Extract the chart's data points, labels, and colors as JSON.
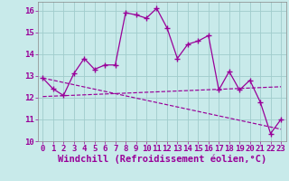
{
  "xlabel": "Windchill (Refroidissement éolien,°C)",
  "x": [
    0,
    1,
    2,
    3,
    4,
    5,
    6,
    7,
    8,
    9,
    10,
    11,
    12,
    13,
    14,
    15,
    16,
    17,
    18,
    19,
    20,
    21,
    22,
    23
  ],
  "line_main": [
    12.9,
    12.4,
    12.1,
    13.1,
    13.8,
    13.3,
    13.5,
    13.5,
    15.9,
    15.8,
    15.65,
    16.1,
    15.2,
    13.8,
    14.45,
    14.6,
    14.85,
    12.35,
    13.2,
    12.35,
    12.8,
    11.8,
    10.35,
    11.0
  ],
  "trend1_x": [
    0,
    23
  ],
  "trend1_y": [
    12.9,
    10.55
  ],
  "trend2_x": [
    0,
    23
  ],
  "trend2_y": [
    12.05,
    12.5
  ],
  "ylim_min": 10,
  "ylim_max": 16.4,
  "yticks": [
    10,
    11,
    12,
    13,
    14,
    15,
    16
  ],
  "xticks": [
    0,
    1,
    2,
    3,
    4,
    5,
    6,
    7,
    8,
    9,
    10,
    11,
    12,
    13,
    14,
    15,
    16,
    17,
    18,
    19,
    20,
    21,
    22,
    23
  ],
  "bg_color": "#c8eaea",
  "line_color": "#990099",
  "grid_color": "#a0cccc",
  "tick_fs": 6.5,
  "label_fs": 7.5
}
